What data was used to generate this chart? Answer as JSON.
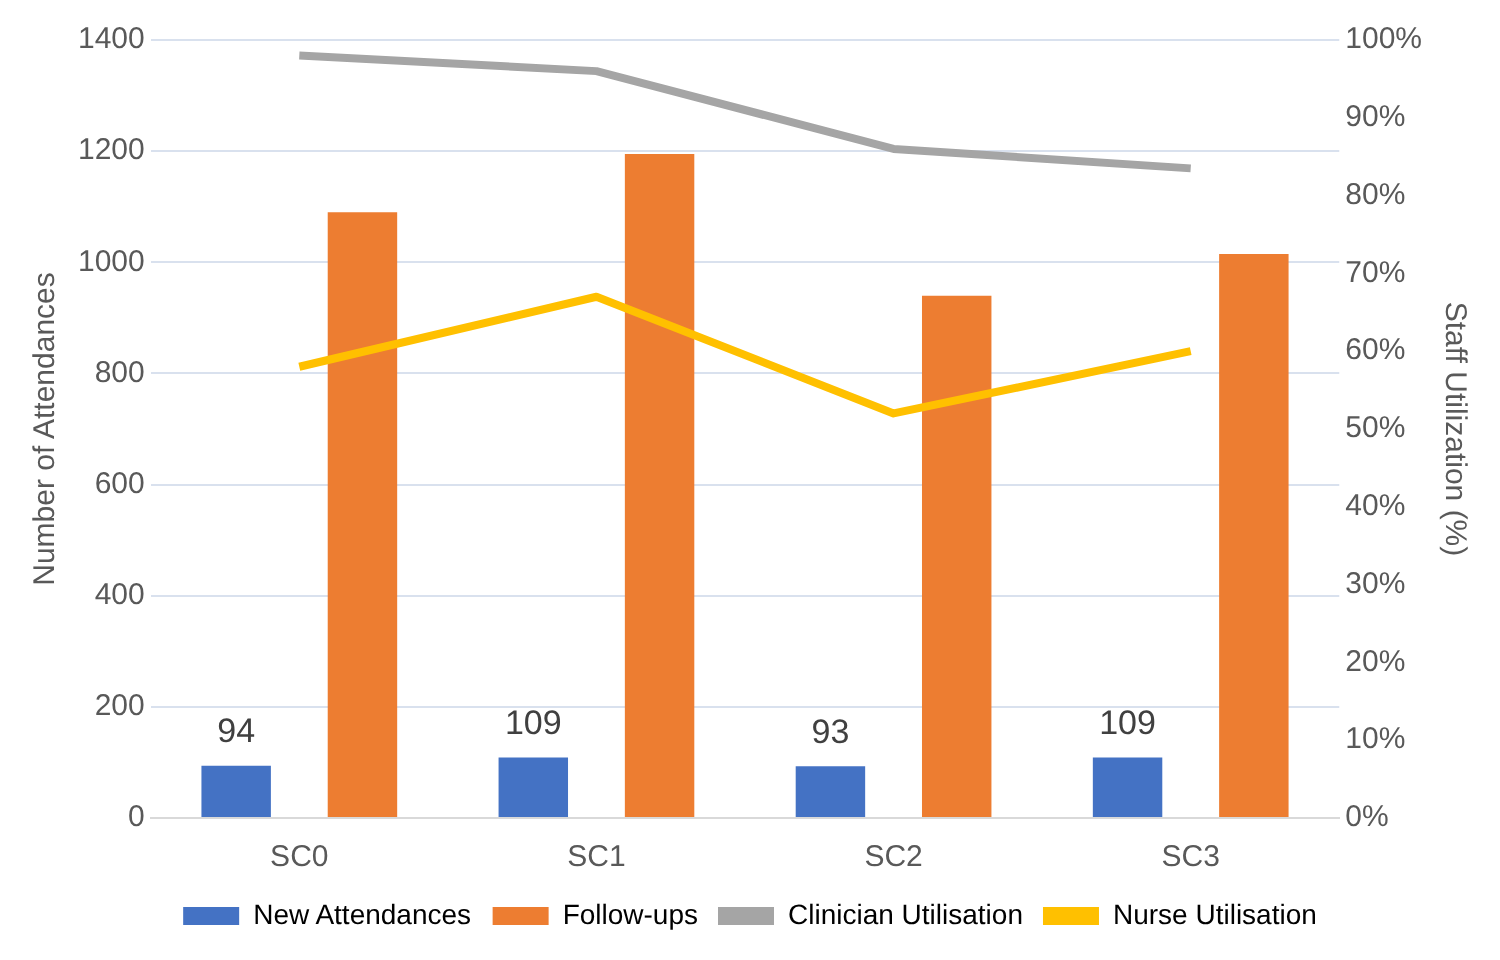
{
  "chart_data": {
    "type": "bar",
    "categories": [
      "SC0",
      "SC1",
      "SC2",
      "SC3"
    ],
    "ylabel": "Number of Attendances",
    "y2label": "Staff Utilization (%)",
    "ylim": [
      0,
      1400
    ],
    "yticks": [
      0,
      200,
      400,
      600,
      800,
      1000,
      1200,
      1400
    ],
    "y2lim": [
      0,
      100
    ],
    "y2ticks": [
      {
        "value": 0,
        "label": "0%"
      },
      {
        "value": 10,
        "label": "10%"
      },
      {
        "value": 20,
        "label": "20%"
      },
      {
        "value": 30,
        "label": "30%"
      },
      {
        "value": 40,
        "label": "40%"
      },
      {
        "value": 50,
        "label": "50%"
      },
      {
        "value": 60,
        "label": "60%"
      },
      {
        "value": 70,
        "label": "70%"
      },
      {
        "value": 80,
        "label": "80%"
      },
      {
        "value": 90,
        "label": "90%"
      },
      {
        "value": 100,
        "label": "100%"
      }
    ],
    "grid": "y",
    "legend": "bottom",
    "marker": "none",
    "series": [
      {
        "name": "New Attendances",
        "color": "#4472c4",
        "values": [
          94,
          109,
          93,
          109
        ],
        "value_labels": [
          "94",
          "109",
          "93",
          "109"
        ]
      },
      {
        "name": "Follow-ups",
        "color": "#ed7d31",
        "values": [
          1090,
          1195,
          940,
          1015
        ]
      },
      {
        "name": "Clinician Utilisation",
        "type": "line",
        "axis": "y2",
        "color": "#a5a5a5",
        "values": [
          98,
          96,
          86,
          83.5
        ]
      },
      {
        "name": "Nurse Utilisation",
        "type": "line",
        "axis": "y2",
        "color": "#ffc000",
        "values": [
          58,
          67,
          52,
          60
        ]
      }
    ]
  }
}
